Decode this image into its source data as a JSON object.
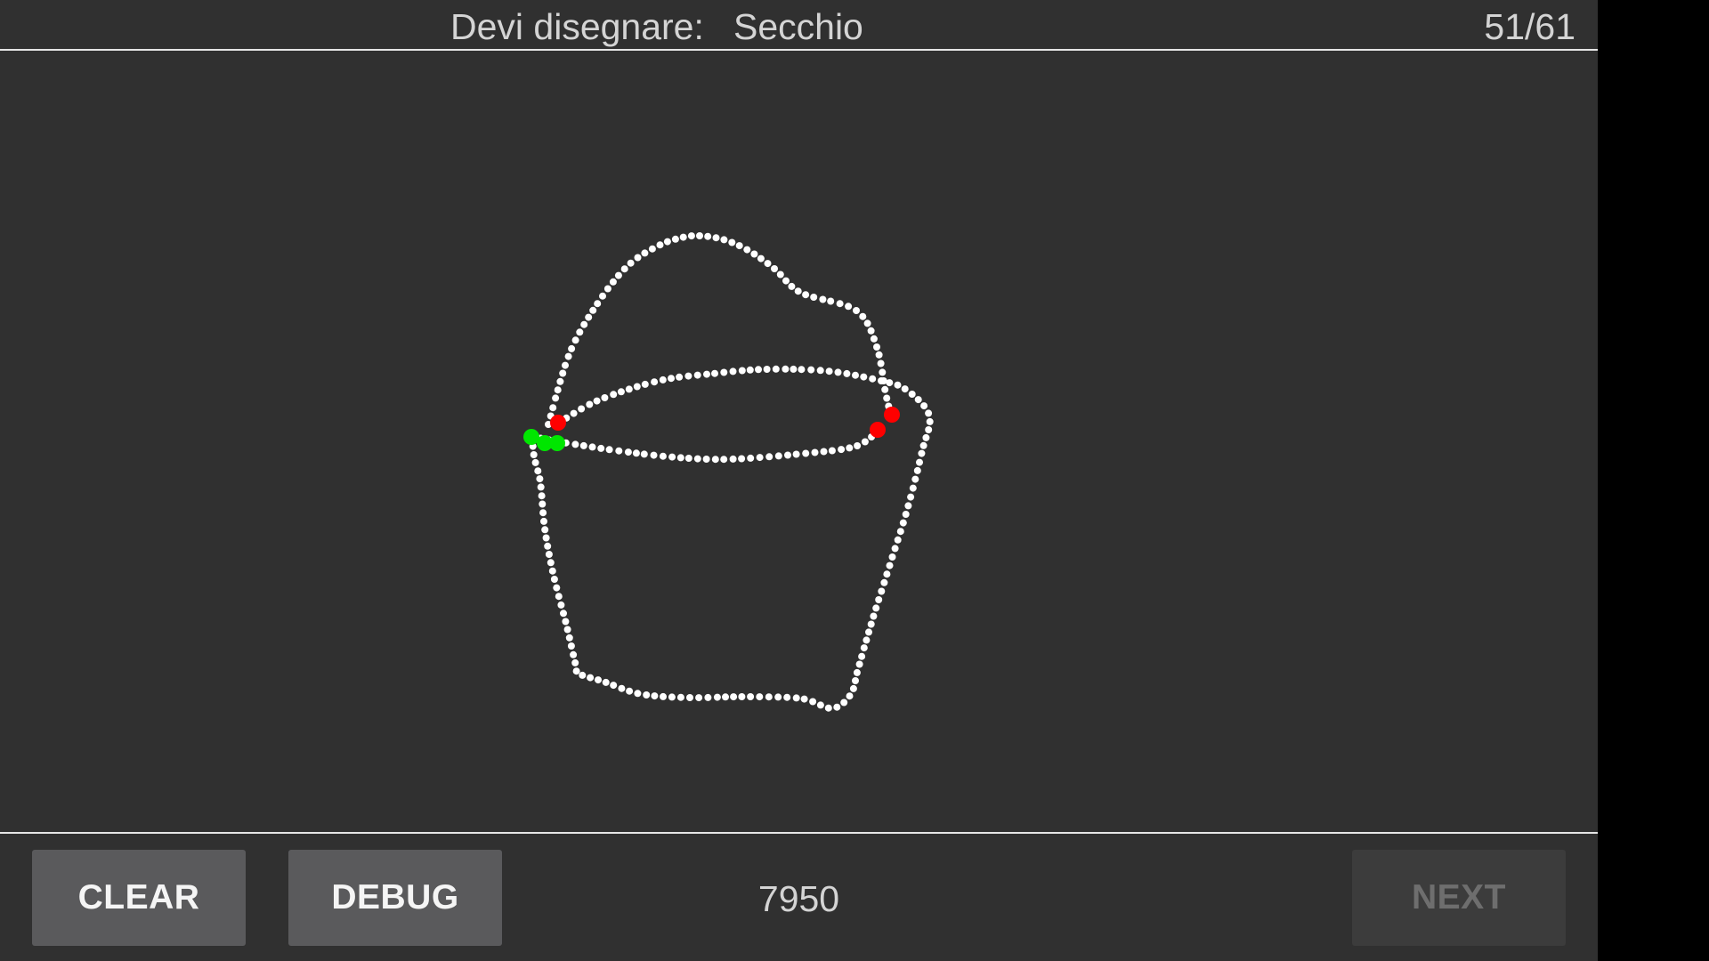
{
  "header": {
    "prompt_label": "Devi disegnare:",
    "target_word": "Secchio",
    "progress": "51/61"
  },
  "footer": {
    "clear_label": "CLEAR",
    "debug_label": "DEBUG",
    "score": "7950",
    "next_label": "NEXT"
  },
  "drawing": {
    "stroke_color": "#ffffff",
    "stroke_start_color": "#00e600",
    "stroke_end_color": "#ff0000"
  },
  "colors": {
    "background": "#303030",
    "button": "#5a5a5c",
    "button_disabled": "#3c3c3c",
    "text": "#d4d4d4"
  }
}
